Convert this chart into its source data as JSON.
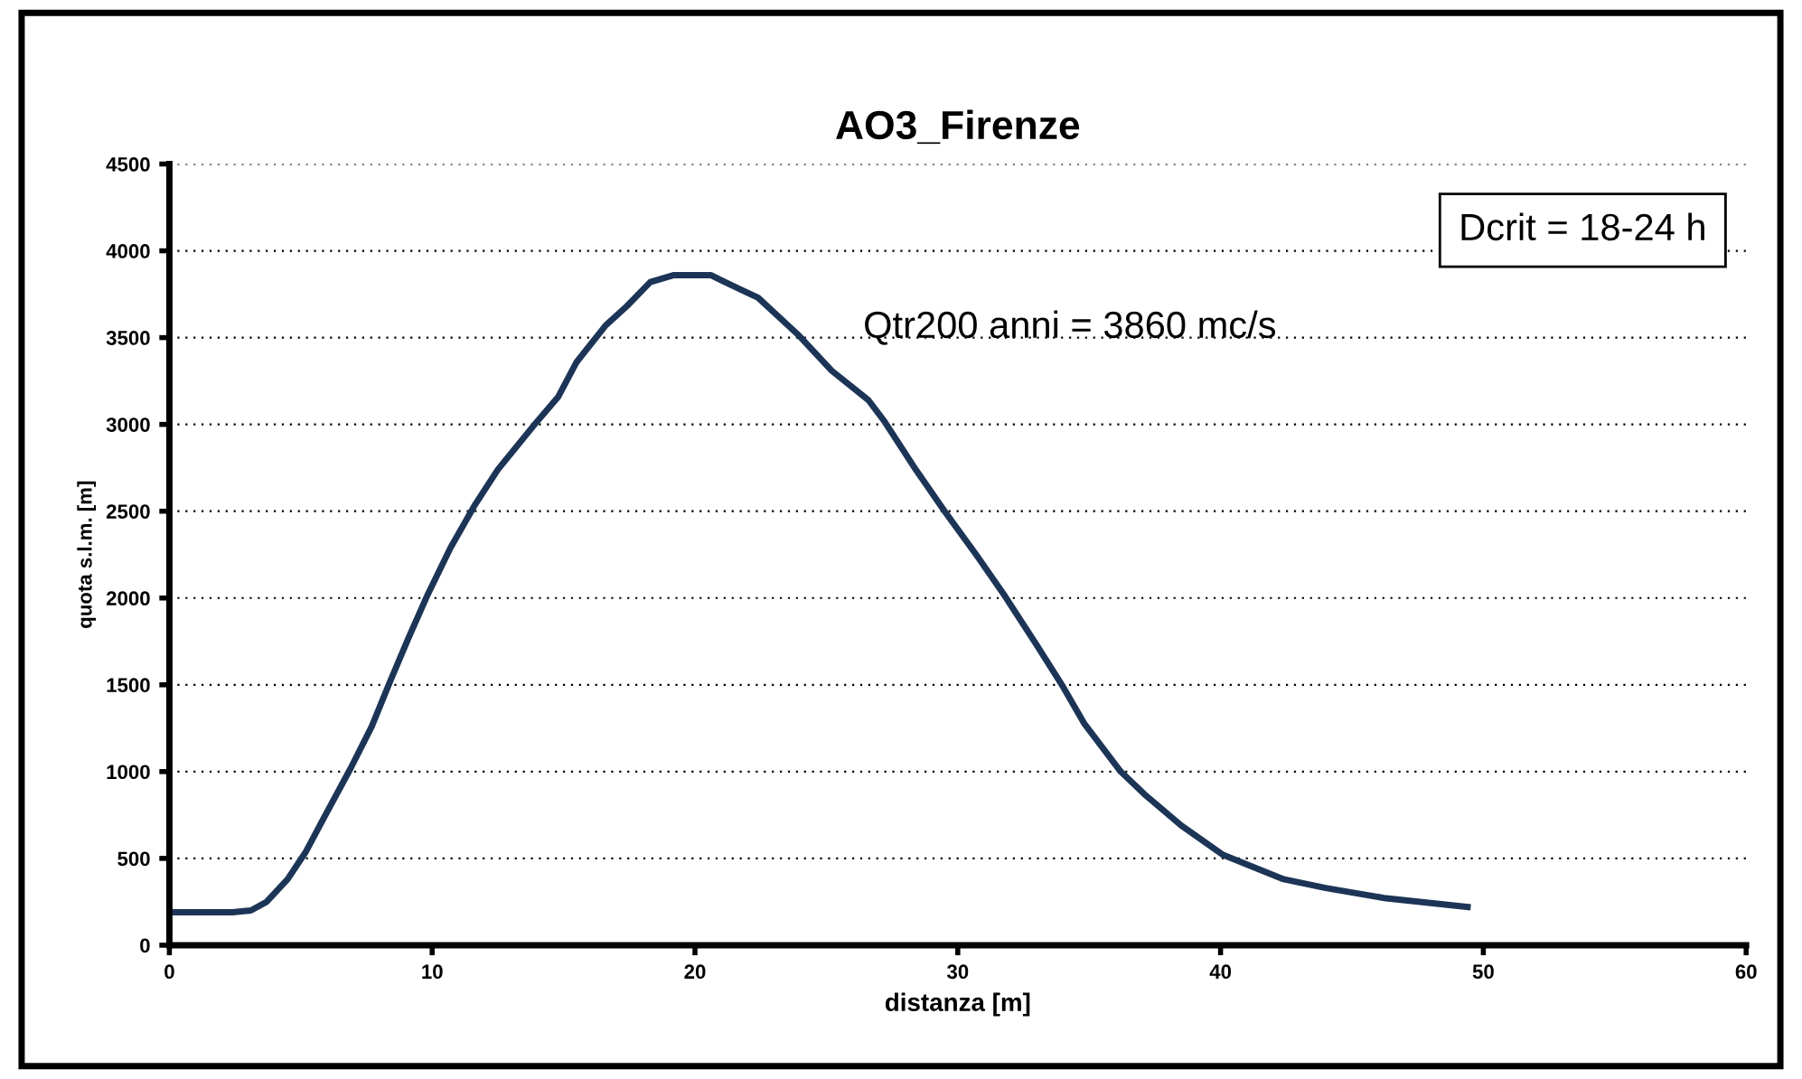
{
  "chart_data": {
    "type": "line",
    "title": "AO3_Firenze",
    "xlabel": "distanza [m]",
    "ylabel": "quota s.l.m. [m]",
    "annotations": [
      "Qtr200 anni = 3860 mc/s",
      "Dcrit = 18-24 h"
    ],
    "xlim": [
      0,
      60
    ],
    "xticks": [
      0,
      10,
      20,
      30,
      40,
      50,
      60
    ],
    "ylim": [
      0,
      4500
    ],
    "yticks": [
      0,
      500,
      1000,
      1500,
      2000,
      2500,
      3000,
      3500,
      4000,
      4500
    ],
    "grid": "y",
    "legend": false,
    "marker": "none",
    "line_style": "solid",
    "series": [
      {
        "color": "#1c3557",
        "x": [
          0,
          2.4,
          3.1,
          3.7,
          4.5,
          5.2,
          5.9,
          6.9,
          7.7,
          8.4,
          9.1,
          9.8,
          10.7,
          11.6,
          12.5,
          13.9,
          14.8,
          15.5,
          16.6,
          17.4,
          18.3,
          19.2,
          20.6,
          21.0,
          21.7,
          22.4,
          23.9,
          25.2,
          26.6,
          27.2,
          28.4,
          29.5,
          30.7,
          31.8,
          33.0,
          34.0,
          34.8,
          36.2,
          37.1,
          38.5,
          40.1,
          42.4,
          44.0,
          46.3,
          49.4
        ],
        "values": [
          190,
          190,
          200,
          250,
          380,
          540,
          740,
          1020,
          1260,
          1520,
          1770,
          2010,
          2290,
          2530,
          2740,
          3000,
          3160,
          3360,
          3570,
          3680,
          3820,
          3860,
          3860,
          3830,
          3780,
          3730,
          3520,
          3310,
          3140,
          3020,
          2740,
          2500,
          2250,
          2010,
          1730,
          1490,
          1280,
          1000,
          870,
          690,
          520,
          380,
          330,
          270,
          220
        ]
      }
    ]
  }
}
